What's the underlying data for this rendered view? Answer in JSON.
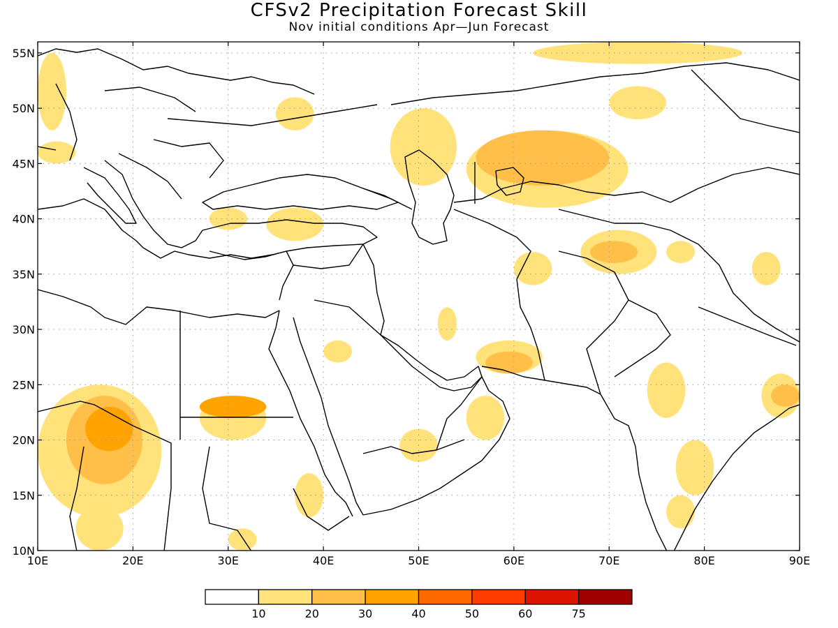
{
  "title": "CFSv2 Precipitation Forecast Skill",
  "subtitle": "Nov initial conditions   Apr—Jun Forecast",
  "map": {
    "lon_range": [
      10,
      90
    ],
    "lat_range": [
      10,
      56
    ],
    "grid": "dotted",
    "x_ticks": [
      {
        "value": 10,
        "label": "10E"
      },
      {
        "value": 20,
        "label": "20E"
      },
      {
        "value": 30,
        "label": "30E"
      },
      {
        "value": 40,
        "label": "40E"
      },
      {
        "value": 50,
        "label": "50E"
      },
      {
        "value": 60,
        "label": "60E"
      },
      {
        "value": 70,
        "label": "70E"
      },
      {
        "value": 80,
        "label": "80E"
      },
      {
        "value": 90,
        "label": "90E"
      }
    ],
    "y_ticks": [
      {
        "value": 55,
        "label": "55N"
      },
      {
        "value": 50,
        "label": "50N"
      },
      {
        "value": 45,
        "label": "45N"
      },
      {
        "value": 40,
        "label": "40N"
      },
      {
        "value": 35,
        "label": "35N"
      },
      {
        "value": 30,
        "label": "30N"
      },
      {
        "value": 25,
        "label": "25N"
      },
      {
        "value": 20,
        "label": "20N"
      },
      {
        "value": 15,
        "label": "15N"
      },
      {
        "value": 10,
        "label": "10N"
      }
    ]
  },
  "colorbar": {
    "bins": [
      {
        "color": "#ffffff"
      },
      {
        "color": "#ffe27a"
      },
      {
        "color": "#ffbf48"
      },
      {
        "color": "#ffa300"
      },
      {
        "color": "#ff6a00"
      },
      {
        "color": "#ff3c00"
      },
      {
        "color": "#dd1400"
      },
      {
        "color": "#a00000"
      }
    ],
    "labels": [
      "10",
      "20",
      "30",
      "40",
      "50",
      "60",
      "75"
    ]
  },
  "skill_regions": [
    {
      "level": 1,
      "box": [
        [
          10,
          16
        ],
        [
          23,
          25
        ],
        [
          19,
          18
        ],
        [
          16,
          13
        ],
        [
          14,
          14
        ],
        [
          10,
          17
        ]
      ]
    },
    {
      "level": 2,
      "box": [
        [
          13,
          17
        ],
        [
          21,
          24
        ],
        [
          19,
          20
        ],
        [
          16,
          16
        ],
        [
          14,
          16
        ]
      ]
    },
    {
      "level": 3,
      "box": [
        [
          15,
          19
        ],
        [
          20,
          23
        ],
        [
          18,
          21
        ],
        [
          16,
          20
        ]
      ]
    },
    {
      "level": 1,
      "box": [
        [
          14,
          10
        ],
        [
          19,
          12
        ],
        [
          18,
          14
        ],
        [
          14,
          13
        ]
      ]
    },
    {
      "level": 1,
      "box": [
        [
          27,
          20
        ],
        [
          34,
          24
        ],
        [
          32,
          22
        ],
        [
          28,
          21
        ]
      ]
    },
    {
      "level": 3,
      "box": [
        [
          27,
          22
        ],
        [
          34,
          24
        ],
        [
          32,
          23
        ],
        [
          28,
          22
        ]
      ]
    },
    {
      "level": 1,
      "box": [
        [
          48,
          18
        ],
        [
          52,
          21
        ],
        [
          51,
          19
        ],
        [
          49,
          18
        ]
      ]
    },
    {
      "level": 1,
      "box": [
        [
          55,
          20
        ],
        [
          59,
          24
        ],
        [
          58,
          22
        ],
        [
          56,
          21
        ]
      ]
    },
    {
      "level": 1,
      "box": [
        [
          56,
          26
        ],
        [
          63,
          29
        ],
        [
          62,
          27
        ],
        [
          58,
          26
        ]
      ]
    },
    {
      "level": 2,
      "box": [
        [
          57,
          26
        ],
        [
          62,
          28
        ],
        [
          61,
          27
        ],
        [
          58,
          26
        ]
      ]
    },
    {
      "level": 1,
      "box": [
        [
          67,
          35
        ],
        [
          75,
          39
        ],
        [
          72,
          38
        ],
        [
          69,
          36
        ]
      ]
    },
    {
      "level": 2,
      "box": [
        [
          68,
          36
        ],
        [
          73,
          38
        ],
        [
          71,
          38
        ],
        [
          69,
          37
        ]
      ]
    },
    {
      "level": 1,
      "box": [
        [
          55,
          41
        ],
        [
          72,
          48
        ],
        [
          70,
          45
        ],
        [
          60,
          43
        ]
      ]
    },
    {
      "level": 2,
      "box": [
        [
          56,
          43
        ],
        [
          70,
          48
        ],
        [
          67,
          46
        ],
        [
          60,
          44
        ]
      ]
    },
    {
      "level": 1,
      "box": [
        [
          47,
          43
        ],
        [
          54,
          50
        ],
        [
          53,
          47
        ],
        [
          49,
          45
        ]
      ]
    },
    {
      "level": 1,
      "box": [
        [
          35,
          48
        ],
        [
          39,
          51
        ],
        [
          38,
          50
        ],
        [
          36,
          49
        ]
      ]
    },
    {
      "level": 1,
      "box": [
        [
          77,
          15
        ],
        [
          81,
          20
        ],
        [
          80,
          17
        ],
        [
          78,
          16
        ]
      ]
    },
    {
      "level": 1,
      "box": [
        [
          76,
          12
        ],
        [
          79,
          15
        ],
        [
          78,
          13
        ],
        [
          77,
          12
        ]
      ]
    },
    {
      "level": 1,
      "box": [
        [
          86,
          22
        ],
        [
          90,
          26
        ],
        [
          89,
          24
        ],
        [
          87,
          23
        ]
      ]
    },
    {
      "level": 2,
      "box": [
        [
          87,
          23
        ],
        [
          90,
          25
        ],
        [
          89,
          24
        ],
        [
          88,
          23
        ]
      ]
    },
    {
      "level": 1,
      "box": [
        [
          74,
          22
        ],
        [
          78,
          27
        ],
        [
          77,
          24
        ],
        [
          75,
          23
        ]
      ]
    },
    {
      "level": 1,
      "box": [
        [
          10,
          48
        ],
        [
          13,
          55
        ],
        [
          12,
          52
        ],
        [
          11,
          50
        ]
      ]
    },
    {
      "level": 1,
      "box": [
        [
          10,
          45
        ],
        [
          14,
          47
        ],
        [
          13,
          46
        ],
        [
          11,
          45
        ]
      ]
    },
    {
      "level": 1,
      "box": [
        [
          70,
          49
        ],
        [
          76,
          52
        ],
        [
          74,
          51
        ],
        [
          72,
          50
        ]
      ]
    },
    {
      "level": 1,
      "box": [
        [
          62,
          54
        ],
        [
          84,
          56
        ],
        [
          80,
          55
        ],
        [
          70,
          55
        ]
      ]
    },
    {
      "level": 1,
      "box": [
        [
          34,
          38
        ],
        [
          40,
          41
        ],
        [
          39,
          39
        ],
        [
          36,
          39
        ]
      ]
    },
    {
      "level": 1,
      "box": [
        [
          28,
          39
        ],
        [
          32,
          41
        ],
        [
          31,
          40
        ],
        [
          29,
          39
        ]
      ]
    },
    {
      "level": 1,
      "box": [
        [
          37,
          13
        ],
        [
          40,
          17
        ],
        [
          39,
          15
        ],
        [
          38,
          14
        ]
      ]
    },
    {
      "level": 1,
      "box": [
        [
          30,
          10
        ],
        [
          33,
          12
        ],
        [
          32,
          11
        ],
        [
          31,
          10
        ]
      ]
    },
    {
      "level": 1,
      "box": [
        [
          40,
          27
        ],
        [
          43,
          29
        ],
        [
          42,
          28
        ],
        [
          41,
          27
        ]
      ]
    },
    {
      "level": 1,
      "box": [
        [
          52,
          29
        ],
        [
          54,
          32
        ],
        [
          53,
          30
        ],
        [
          52,
          30
        ]
      ]
    },
    {
      "level": 1,
      "box": [
        [
          65,
          44
        ],
        [
          70,
          47
        ],
        [
          68,
          46
        ],
        [
          66,
          45
        ]
      ]
    },
    {
      "level": 1,
      "box": [
        [
          76,
          36
        ],
        [
          79,
          38
        ],
        [
          78,
          37
        ],
        [
          77,
          36
        ]
      ]
    },
    {
      "level": 1,
      "box": [
        [
          85,
          34
        ],
        [
          88,
          37
        ],
        [
          87,
          35
        ],
        [
          86,
          35
        ]
      ]
    },
    {
      "level": 1,
      "box": [
        [
          60,
          34
        ],
        [
          64,
          37
        ],
        [
          63,
          36
        ],
        [
          61,
          35
        ]
      ]
    }
  ]
}
